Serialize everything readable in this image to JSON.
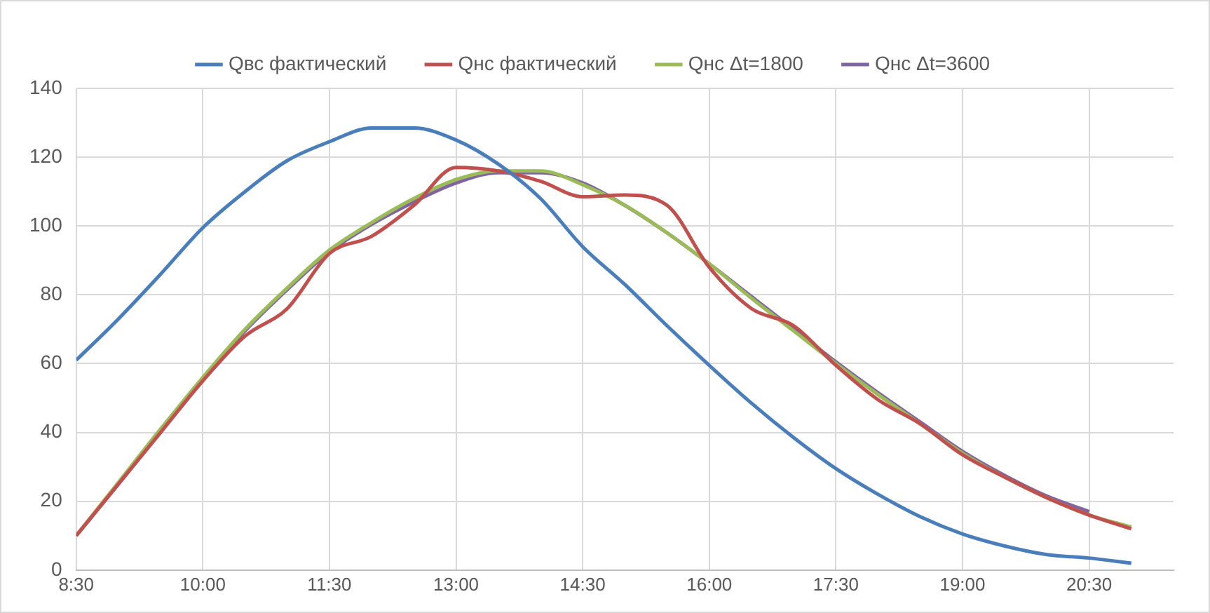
{
  "chart_data": {
    "type": "line",
    "x": [
      8.5,
      9,
      9.5,
      10,
      10.5,
      11,
      11.5,
      12,
      12.5,
      13,
      13.5,
      14,
      14.5,
      15,
      15.5,
      16,
      16.5,
      17,
      17.5,
      18,
      18.5,
      19,
      19.5,
      20,
      20.5,
      21
    ],
    "series": [
      {
        "name": "Qвс фактический",
        "color": "#4a7ebb",
        "values": [
          61,
          73,
          86,
          99.5,
          110,
          119,
          124.5,
          128.5,
          128.5,
          125,
          118,
          108,
          94,
          83,
          71,
          59.5,
          48.5,
          38.5,
          29.5,
          22,
          15.5,
          10.5,
          7,
          4.5,
          3.5,
          2
        ]
      },
      {
        "name": "Qнс фактический",
        "color": "#c0504d",
        "values": [
          10,
          25,
          40,
          55,
          68,
          76,
          92,
          97,
          106,
          117,
          116,
          113,
          108.5,
          109,
          106,
          88,
          76,
          71,
          59.5,
          49.5,
          42.5,
          33.5,
          27,
          21,
          16,
          12
        ]
      },
      {
        "name": "Qнс Δt=1800",
        "color": "#9bbb59",
        "values": [
          10,
          25.5,
          41,
          56,
          70,
          82,
          93,
          101,
          108,
          113.5,
          116,
          116,
          112,
          106,
          98,
          89,
          79,
          69.5,
          60,
          51,
          42.5,
          34,
          27,
          21,
          16,
          12.5
        ]
      },
      {
        "name": "Qнс Δt=3600",
        "color": "#8064a2",
        "values": [
          10,
          25,
          40.5,
          55.5,
          69.5,
          81.5,
          92.5,
          100.5,
          107,
          112.5,
          115.5,
          115.5,
          112.5,
          106,
          98,
          89,
          79.5,
          70,
          60.5,
          51.5,
          43,
          34.5,
          27.5,
          21.5,
          17,
          null
        ]
      }
    ],
    "xlim": [
      8.5,
      21.5
    ],
    "xticks": [
      {
        "value": 8.5,
        "label": "8:30"
      },
      {
        "value": 10,
        "label": "10:00"
      },
      {
        "value": 11.5,
        "label": "11:30"
      },
      {
        "value": 13,
        "label": "13:00"
      },
      {
        "value": 14.5,
        "label": "14:30"
      },
      {
        "value": 16,
        "label": "16:00"
      },
      {
        "value": 17.5,
        "label": "17:30"
      },
      {
        "value": 19,
        "label": "19:00"
      },
      {
        "value": 20.5,
        "label": "20:30"
      }
    ],
    "ylim": [
      0,
      140
    ],
    "yticks": [
      0,
      20,
      40,
      60,
      80,
      100,
      120,
      140
    ],
    "grid": true,
    "legend": "top",
    "marker": "none",
    "line_style": "solid"
  }
}
